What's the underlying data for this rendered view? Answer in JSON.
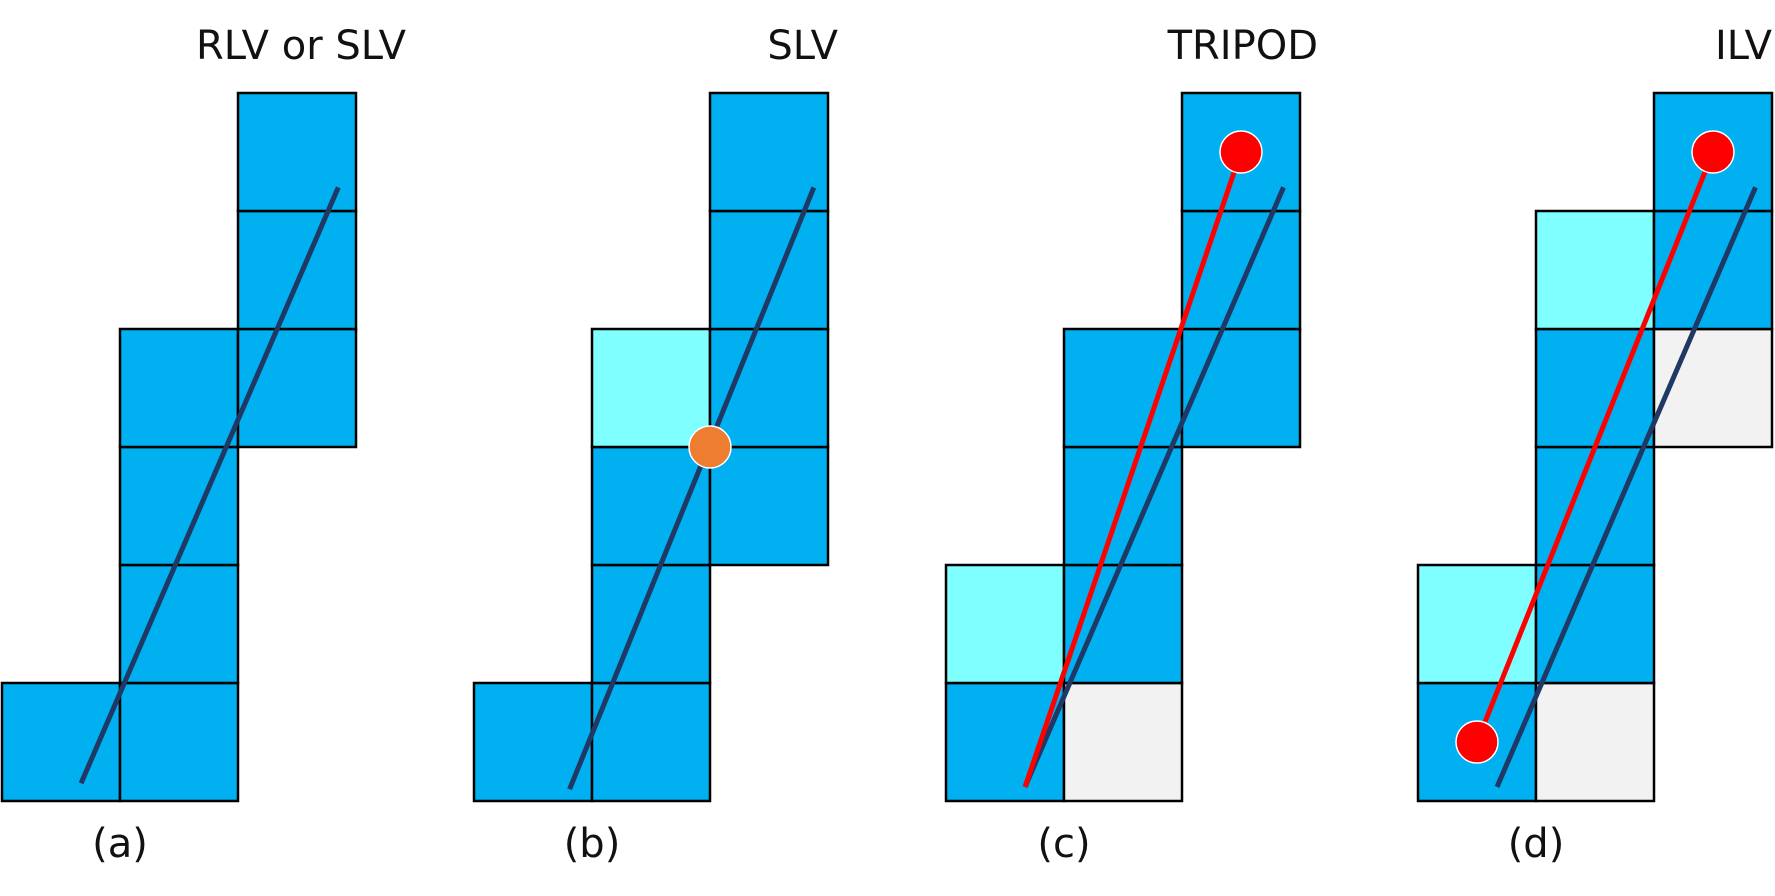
{
  "colors": {
    "cell_blue": "#00b0f0",
    "cell_cyan": "#7fffff",
    "cell_gray": "#f2f2f2",
    "cell_border": "#000000",
    "line_navy": "#1f3864",
    "line_red": "#ff0000",
    "dot_red": "#ff0000",
    "dot_orange": "#ed7d31"
  },
  "panels": [
    {
      "id": "a",
      "title": "RLV or SLV",
      "caption": "(a)",
      "cells": [
        {
          "col": 0,
          "row": 0,
          "fill": "blue"
        },
        {
          "col": 1,
          "row": 0,
          "fill": "blue"
        },
        {
          "col": 1,
          "row": 1,
          "fill": "blue"
        },
        {
          "col": 1,
          "row": 2,
          "fill": "blue"
        },
        {
          "col": 1,
          "row": 3,
          "fill": "blue"
        },
        {
          "col": 2,
          "row": 3,
          "fill": "blue"
        },
        {
          "col": 2,
          "row": 4,
          "fill": "blue"
        },
        {
          "col": 2,
          "row": 5,
          "fill": "blue"
        }
      ],
      "lines": [
        {
          "color": "navy",
          "from": [
            0.67,
            0.15
          ],
          "to": [
            2.85,
            5.2
          ]
        }
      ],
      "dots": []
    },
    {
      "id": "b",
      "title": "SLV",
      "caption": "(b)",
      "cells": [
        {
          "col": 0,
          "row": 0,
          "fill": "blue"
        },
        {
          "col": 1,
          "row": 0,
          "fill": "blue"
        },
        {
          "col": 1,
          "row": 1,
          "fill": "blue"
        },
        {
          "col": 1,
          "row": 2,
          "fill": "blue"
        },
        {
          "col": 1,
          "row": 3,
          "fill": "cyan"
        },
        {
          "col": 2,
          "row": 2,
          "fill": "blue"
        },
        {
          "col": 2,
          "row": 3,
          "fill": "blue"
        },
        {
          "col": 2,
          "row": 4,
          "fill": "blue"
        },
        {
          "col": 2,
          "row": 5,
          "fill": "blue"
        }
      ],
      "lines": [
        {
          "color": "navy",
          "from": [
            0.81,
            0.1
          ],
          "to": [
            2.88,
            5.2
          ]
        }
      ],
      "dots": [
        {
          "color": "orange",
          "at": [
            2.0,
            3.0
          ]
        }
      ]
    },
    {
      "id": "c",
      "title": "TRIPOD",
      "caption": "(c)",
      "cells": [
        {
          "col": 0,
          "row": 0,
          "fill": "blue"
        },
        {
          "col": 0,
          "row": 1,
          "fill": "cyan"
        },
        {
          "col": 1,
          "row": 0,
          "fill": "gray"
        },
        {
          "col": 1,
          "row": 1,
          "fill": "blue"
        },
        {
          "col": 1,
          "row": 2,
          "fill": "blue"
        },
        {
          "col": 1,
          "row": 3,
          "fill": "blue"
        },
        {
          "col": 2,
          "row": 3,
          "fill": "blue"
        },
        {
          "col": 2,
          "row": 4,
          "fill": "blue"
        },
        {
          "col": 2,
          "row": 5,
          "fill": "blue"
        }
      ],
      "lines": [
        {
          "color": "navy",
          "from": [
            0.67,
            0.12
          ],
          "to": [
            2.86,
            5.2
          ]
        },
        {
          "color": "red",
          "from": [
            0.67,
            0.12
          ],
          "to": [
            2.5,
            5.5
          ]
        }
      ],
      "dots": [
        {
          "color": "red",
          "at": [
            2.5,
            5.5
          ]
        }
      ]
    },
    {
      "id": "d",
      "title": "ILV",
      "caption": "(d)",
      "cells": [
        {
          "col": 0,
          "row": 0,
          "fill": "blue"
        },
        {
          "col": 0,
          "row": 1,
          "fill": "cyan"
        },
        {
          "col": 1,
          "row": 0,
          "fill": "gray"
        },
        {
          "col": 1,
          "row": 1,
          "fill": "blue"
        },
        {
          "col": 1,
          "row": 2,
          "fill": "blue"
        },
        {
          "col": 1,
          "row": 3,
          "fill": "blue"
        },
        {
          "col": 1,
          "row": 4,
          "fill": "cyan"
        },
        {
          "col": 2,
          "row": 3,
          "fill": "gray"
        },
        {
          "col": 2,
          "row": 4,
          "fill": "blue"
        },
        {
          "col": 2,
          "row": 5,
          "fill": "blue"
        }
      ],
      "lines": [
        {
          "color": "navy",
          "from": [
            0.67,
            0.12
          ],
          "to": [
            2.86,
            5.2
          ]
        },
        {
          "color": "red",
          "from": [
            0.5,
            0.5
          ],
          "to": [
            2.5,
            5.5
          ]
        }
      ],
      "dots": [
        {
          "color": "red",
          "at": [
            0.5,
            0.5
          ]
        },
        {
          "color": "red",
          "at": [
            2.5,
            5.5
          ]
        }
      ]
    }
  ]
}
